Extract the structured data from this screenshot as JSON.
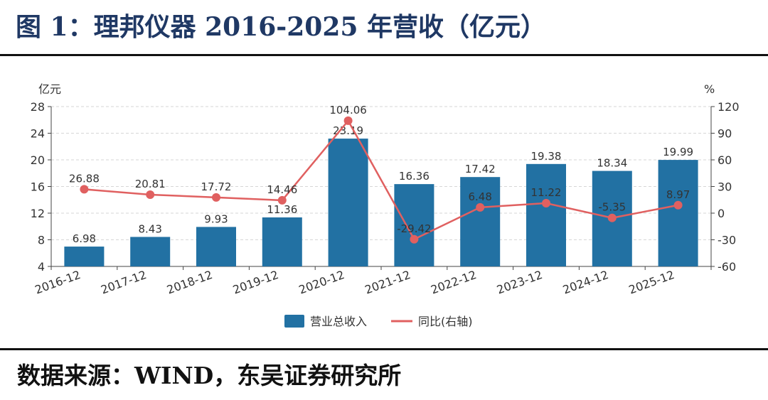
{
  "figure_title": "图 1：理邦仪器 2016-2025 年营收（亿元）",
  "source_note": "数据来源：WIND，东吴证券研究所",
  "chart_data": {
    "type": "bar",
    "categories": [
      "2016-12",
      "2017-12",
      "2018-12",
      "2019-12",
      "2020-12",
      "2021-12",
      "2022-12",
      "2023-12",
      "2024-12",
      "2025-12"
    ],
    "series": [
      {
        "name": "营业总收入",
        "type": "bar",
        "axis": "left",
        "color": "#2271a3",
        "values": [
          6.98,
          8.43,
          9.93,
          11.36,
          23.19,
          16.36,
          17.42,
          19.38,
          18.34,
          19.99
        ]
      },
      {
        "name": "同比(右轴)",
        "type": "line",
        "axis": "right",
        "color": "#e06060",
        "values": [
          26.88,
          20.81,
          17.72,
          14.46,
          104.06,
          -29.42,
          6.48,
          11.22,
          -5.35,
          8.97
        ]
      }
    ],
    "y_left": {
      "unit": "亿元",
      "ylim": [
        4,
        28
      ],
      "ticks": [
        4,
        8,
        12,
        16,
        20,
        24,
        28
      ]
    },
    "y_right": {
      "unit": "%",
      "ylim": [
        -60,
        120
      ],
      "ticks": [
        -60,
        -30,
        0,
        30,
        60,
        90,
        120
      ]
    },
    "grid": true,
    "legend_position": "bottom-center"
  }
}
